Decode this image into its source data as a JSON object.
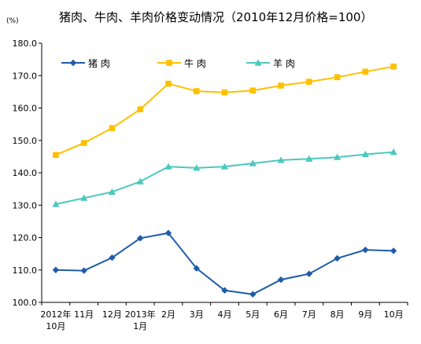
{
  "chart_data": {
    "type": "line",
    "title": "猪肉、牛肉、羊肉价格变动情况（2010年12月价格=100）",
    "unit": "(%)",
    "xlabel": "",
    "ylabel": "",
    "ylim": [
      100,
      180
    ],
    "yticks": [
      "100.0",
      "110.0",
      "120.0",
      "130.0",
      "140.0",
      "150.0",
      "160.0",
      "170.0",
      "180.0"
    ],
    "grid": false,
    "legend_position": "top-left",
    "categories": [
      [
        "2012年",
        "10月"
      ],
      [
        "11月"
      ],
      [
        "12月"
      ],
      [
        "2013年",
        "1月"
      ],
      [
        "2月"
      ],
      [
        "3月"
      ],
      [
        "4月"
      ],
      [
        "5月"
      ],
      [
        "6月"
      ],
      [
        "7月"
      ],
      [
        "8月"
      ],
      [
        "9月"
      ],
      [
        "10月"
      ]
    ],
    "series": [
      {
        "name": "猪    肉",
        "color": "#1F5BAA",
        "marker": "diamond",
        "values": [
          110.0,
          109.8,
          113.8,
          119.8,
          121.4,
          110.5,
          103.7,
          102.5,
          107.0,
          108.8,
          113.6,
          116.2,
          115.9
        ]
      },
      {
        "name": "牛    肉",
        "color": "#FFC000",
        "marker": "square",
        "values": [
          145.5,
          149.2,
          153.8,
          159.6,
          167.5,
          165.2,
          164.8,
          165.4,
          166.9,
          168.1,
          169.5,
          171.2,
          172.8
        ]
      },
      {
        "name": "羊    肉",
        "color": "#4BC8BE",
        "marker": "triangle",
        "values": [
          130.3,
          132.2,
          134.1,
          137.3,
          141.9,
          141.5,
          141.9,
          142.9,
          143.9,
          144.3,
          144.8,
          145.7,
          146.4
        ]
      }
    ]
  }
}
